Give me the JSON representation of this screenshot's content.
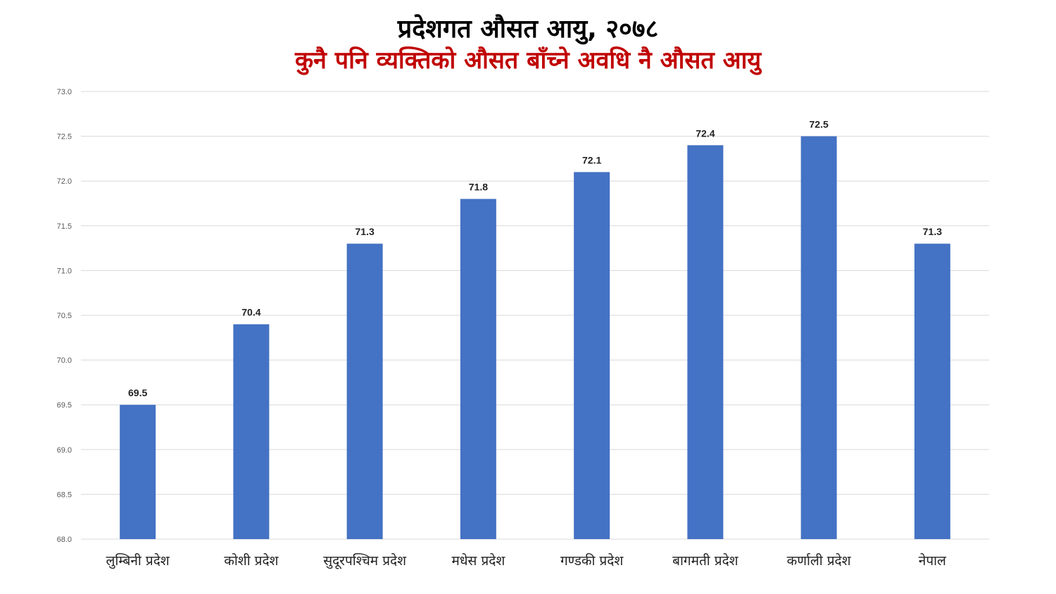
{
  "header": {
    "title": "प्रदेशगत औसत आयु, २०७८",
    "subtitle": "कुनै पनि व्यक्तिको औसत बाँच्ने अवधि नै औसत आयु"
  },
  "colors": {
    "bar": "#4472c4",
    "subtitle": "#c00000",
    "grid": "#d9d9d9"
  },
  "chart_data": {
    "type": "bar",
    "title": "प्रदेशगत औसत आयु, २०७८",
    "subtitle": "कुनै पनि व्यक्तिको औसत बाँच्ने अवधि नै औसत आयु",
    "categories": [
      "लुम्बिनी प्रदेश",
      "कोशी प्रदेश",
      "सुदूरपश्चिम प्रदेश",
      "मधेस प्रदेश",
      "गण्डकी प्रदेश",
      "बागमती प्रदेश",
      "कर्णाली प्रदेश",
      "नेपाल"
    ],
    "values": [
      69.5,
      70.4,
      71.3,
      71.8,
      72.1,
      72.4,
      72.5,
      71.3
    ],
    "value_labels": [
      "69.5",
      "70.4",
      "71.3",
      "71.8",
      "72.1",
      "72.4",
      "72.5",
      "71.3"
    ],
    "yticks": [
      "68.0",
      "68.5",
      "69.0",
      "69.5",
      "70.0",
      "70.5",
      "71.0",
      "71.5",
      "72.0",
      "72.5",
      "73.0"
    ],
    "ylim": [
      68.0,
      73.0
    ],
    "xlabel": "",
    "ylabel": "",
    "grid": true,
    "legend": "none"
  }
}
